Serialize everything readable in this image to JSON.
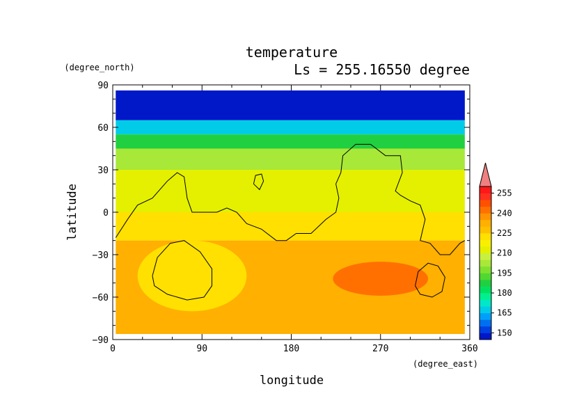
{
  "chart_data": {
    "type": "heatmap",
    "title": "temperature",
    "subtitle": "Ls = 255.16550 degree",
    "xlabel": "longitude",
    "ylabel": "latitude",
    "xunit": "(degree_east)",
    "yunit": "(degree_north)",
    "xlim": [
      0,
      360
    ],
    "ylim": [
      -90,
      90
    ],
    "xticks": [
      0,
      90,
      180,
      270,
      360
    ],
    "xtick_labels": [
      "0",
      "90",
      "180",
      "270",
      "360"
    ],
    "yticks": [
      -90,
      -60,
      -30,
      0,
      30,
      60,
      90
    ],
    "ytick_labels": [
      "−90",
      "−60",
      "−30",
      "0",
      "30",
      "60",
      "90"
    ],
    "data_extent": {
      "lon": [
        3,
        355
      ],
      "lat": [
        -87,
        87
      ]
    },
    "colorbar": {
      "levels": [
        145,
        150,
        155,
        160,
        165,
        170,
        175,
        180,
        185,
        190,
        195,
        200,
        205,
        210,
        215,
        220,
        225,
        230,
        235,
        240,
        245,
        250,
        255,
        260
      ],
      "colors": [
        "#0018c8",
        "#0040e0",
        "#0070f0",
        "#00a0f8",
        "#00cce8",
        "#00e8c8",
        "#00f090",
        "#00e060",
        "#20d040",
        "#50d830",
        "#80e030",
        "#a8e838",
        "#c8f040",
        "#e4f000",
        "#f8f000",
        "#ffe000",
        "#ffc000",
        "#ffb000",
        "#ff9400",
        "#ff7000",
        "#ff5000",
        "#ff3020",
        "#ff1818"
      ],
      "tick_values": [
        150,
        165,
        180,
        195,
        210,
        225,
        240,
        255
      ],
      "tick_labels": [
        "150",
        "165",
        "180",
        "195",
        "210",
        "225",
        "240",
        "255"
      ],
      "extend": "max",
      "extend_color": "#f08080"
    },
    "field": {
      "lat_bands": [
        {
          "lat_from": 87,
          "lat_to": 65,
          "value": 148
        },
        {
          "lat_from": 65,
          "lat_to": 55,
          "value": 165
        },
        {
          "lat_from": 55,
          "lat_to": 45,
          "value": 185
        },
        {
          "lat_from": 45,
          "lat_to": 30,
          "value": 200
        },
        {
          "lat_from": 30,
          "lat_to": 0,
          "value": 212
        },
        {
          "lat_from": 0,
          "lat_to": -20,
          "value": 220
        },
        {
          "lat_from": -20,
          "lat_to": -87,
          "value": 230
        }
      ],
      "patches": [
        {
          "lon": 80,
          "lat": -45,
          "rlon": 55,
          "rlat": 25,
          "value": 222
        },
        {
          "lon": 270,
          "lat": -47,
          "rlon": 48,
          "rlat": 12,
          "value": 240
        }
      ]
    },
    "contours": [
      {
        "name": "coast",
        "points": [
          [
            3,
            -18
          ],
          [
            15,
            -5
          ],
          [
            25,
            5
          ],
          [
            40,
            10
          ],
          [
            55,
            22
          ],
          [
            65,
            28
          ],
          [
            72,
            25
          ],
          [
            75,
            10
          ],
          [
            80,
            0
          ],
          [
            95,
            0
          ],
          [
            105,
            0
          ],
          [
            115,
            3
          ],
          [
            125,
            0
          ],
          [
            135,
            -8
          ],
          [
            150,
            -12
          ],
          [
            165,
            -20
          ],
          [
            175,
            -20
          ],
          [
            185,
            -15
          ],
          [
            200,
            -15
          ],
          [
            215,
            -5
          ],
          [
            225,
            0
          ],
          [
            228,
            10
          ],
          [
            225,
            20
          ],
          [
            230,
            28
          ],
          [
            232,
            40
          ],
          [
            245,
            48
          ],
          [
            260,
            48
          ],
          [
            275,
            40
          ],
          [
            290,
            40
          ],
          [
            292,
            28
          ],
          [
            285,
            15
          ],
          [
            290,
            12
          ],
          [
            300,
            8
          ],
          [
            310,
            5
          ],
          [
            315,
            -5
          ],
          [
            310,
            -20
          ],
          [
            320,
            -22
          ],
          [
            330,
            -30
          ],
          [
            340,
            -30
          ],
          [
            350,
            -22
          ],
          [
            355,
            -20
          ]
        ]
      },
      {
        "name": "island",
        "points": [
          [
            142,
            20
          ],
          [
            148,
            16
          ],
          [
            152,
            22
          ],
          [
            150,
            27
          ],
          [
            144,
            26
          ],
          [
            142,
            20
          ]
        ]
      },
      {
        "name": "basin-west",
        "points": [
          [
            40,
            -45
          ],
          [
            45,
            -32
          ],
          [
            58,
            -22
          ],
          [
            72,
            -20
          ],
          [
            88,
            -28
          ],
          [
            100,
            -40
          ],
          [
            100,
            -52
          ],
          [
            92,
            -60
          ],
          [
            75,
            -62
          ],
          [
            55,
            -58
          ],
          [
            42,
            -52
          ],
          [
            40,
            -45
          ]
        ]
      },
      {
        "name": "basin-east",
        "points": [
          [
            305,
            -52
          ],
          [
            308,
            -42
          ],
          [
            318,
            -36
          ],
          [
            328,
            -38
          ],
          [
            335,
            -46
          ],
          [
            332,
            -56
          ],
          [
            322,
            -60
          ],
          [
            310,
            -58
          ],
          [
            305,
            -52
          ]
        ]
      }
    ]
  }
}
